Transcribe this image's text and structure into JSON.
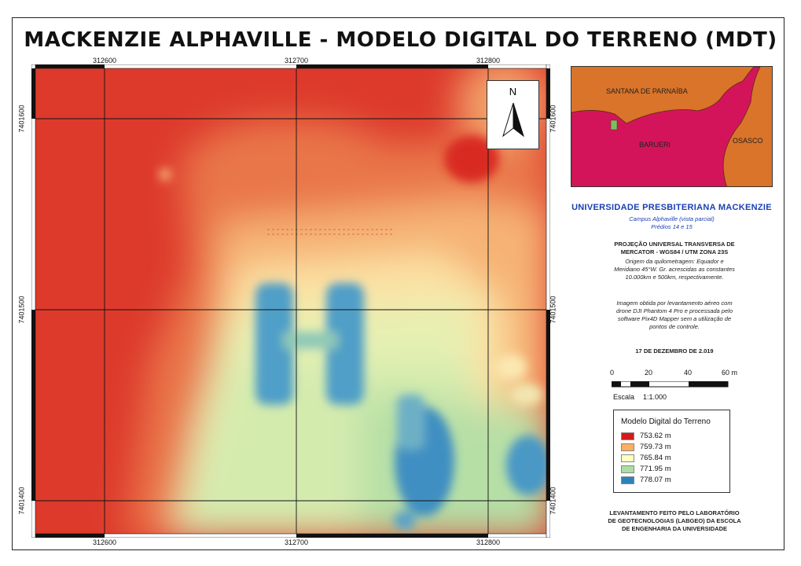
{
  "title": "MACKENZIE ALPHAVILLE - MODELO DIGITAL DO TERRENO (MDT)",
  "map": {
    "x_ticks_top": [
      "312600",
      "312700",
      "312800"
    ],
    "x_ticks_bottom": [
      "312600",
      "312700",
      "312800"
    ],
    "y_ticks_left": [
      "7401600",
      "7401500",
      "7401400"
    ],
    "y_ticks_right": [
      "7401600",
      "7401500",
      "7401400"
    ],
    "north_label": "N"
  },
  "inset": {
    "labels": [
      "SANTANA DE PARNAÍBA",
      "BARUERI",
      "OSASCO"
    ],
    "colors": {
      "other_municipalities": "#d9742a",
      "barueri": "#d4145a",
      "campus": "#7fbf5a"
    }
  },
  "info": {
    "university": "UNIVERSIDADE PRESBITERIANA MACKENZIE",
    "campus": "Campus Alphaville (vista parcial)",
    "buildings": "Prédios 14 e 15",
    "projection_1": "PROJEÇÃO UNIVERSAL TRANSVERSA DE",
    "projection_2": "MERCATOR - WGS84 / UTM ZONA 23S",
    "origin_1": "Origem da quilometragem: Equador e",
    "origin_2": "Meridiano 45°W. Gr. acrescidas as constantes",
    "origin_3": "10.000km e 500km, respectivamente.",
    "survey_1": "Imagem obtida por levantamento aéreo com",
    "survey_2": "drone DJI Phantom 4 Pro e processada pelo",
    "survey_3": "software Pix4D Mapper sem a utilização de",
    "survey_4": "pontos de controle.",
    "date": "17 DE DEZEMBRO DE 2.019",
    "credits_1": "LEVANTAMENTO FEITO PELO LABORATÓRIO",
    "credits_2": "DE GEOTECNOLOGIAS (LABGEO) DA ESCOLA",
    "credits_3": "DE ENGENHARIA DA UNIVERSIDADE"
  },
  "scale": {
    "ticks": [
      "0",
      "20",
      "40",
      "60 m"
    ],
    "label": "Escala",
    "ratio": "1:1.000"
  },
  "legend": {
    "title": "Modelo Digital do Terreno",
    "items": [
      {
        "label": "753.62 m",
        "color": "#d7191c"
      },
      {
        "label": "759.73 m",
        "color": "#fdae61"
      },
      {
        "label": "765.84 m",
        "color": "#ffffbf"
      },
      {
        "label": "771.95 m",
        "color": "#abdda4"
      },
      {
        "label": "778.07 m",
        "color": "#2b83ba"
      }
    ]
  }
}
